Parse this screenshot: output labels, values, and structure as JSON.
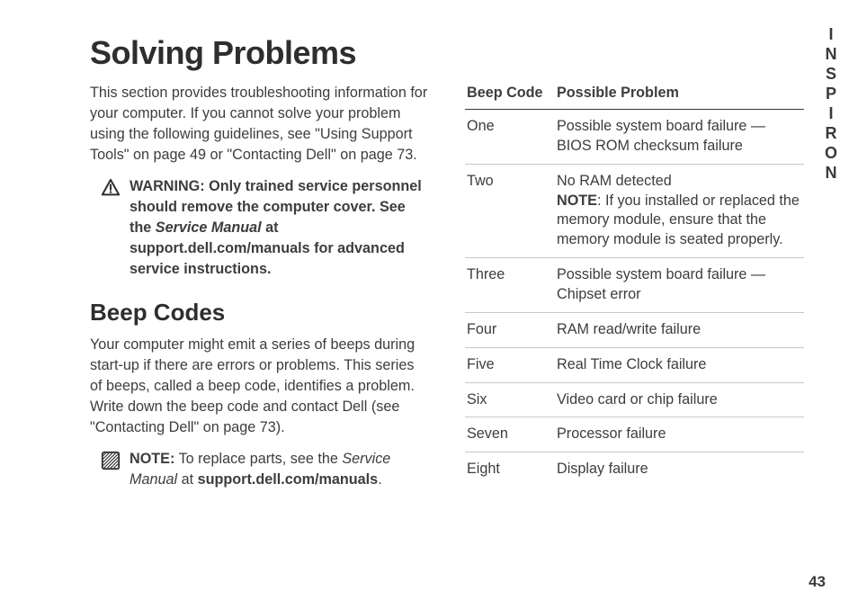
{
  "side_label": "INSPIRON",
  "page_number": "43",
  "h1": "Solving Problems",
  "intro": "This section provides troubleshooting information for your computer. If you cannot solve your problem using the following guidelines, see \"Using Support Tools\" on page 49 or \"Contacting Dell\" on page 73.",
  "warning": {
    "prefix": "WARNING: Only trained service personnel should remove the computer cover. See the ",
    "ital": "Service Manual",
    "suffix": " at support.dell.com/manuals for advanced service instructions."
  },
  "h2": "Beep Codes",
  "beep_intro": "Your computer might emit a series of beeps during start-up if there are errors or problems. This series of beeps, called a beep code, identifies a problem. Write down the beep code and contact Dell (see \"Contacting Dell\" on page 73).",
  "note": {
    "label": "NOTE:",
    "body1": " To replace parts, see the ",
    "ital": "Service Manual",
    "body2": " at ",
    "bold2": "support.dell.com/manuals",
    "body3": "."
  },
  "table": {
    "head1": "Beep Code",
    "head2": "Possible Problem",
    "rows": [
      {
        "code": "One",
        "problem": "Possible system board failure — BIOS ROM checksum failure"
      },
      {
        "code": "Two",
        "problem": "No RAM detected",
        "note_label": "NOTE",
        "note": ": If you installed or replaced the memory module, ensure that the memory module is seated properly."
      },
      {
        "code": "Three",
        "problem": "Possible system board failure — Chipset error"
      },
      {
        "code": "Four",
        "problem": "RAM read/write failure"
      },
      {
        "code": "Five",
        "problem": "Real Time Clock failure"
      },
      {
        "code": "Six",
        "problem": "Video card or chip failure"
      },
      {
        "code": "Seven",
        "problem": "Processor failure"
      },
      {
        "code": "Eight",
        "problem": "Display failure"
      }
    ]
  }
}
